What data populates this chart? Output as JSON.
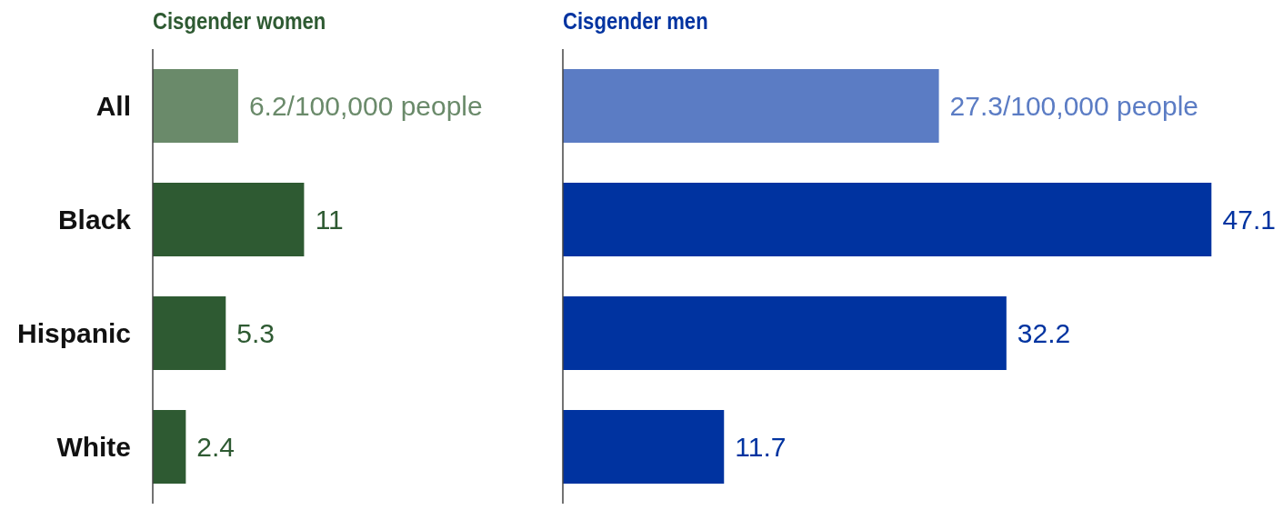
{
  "chart_data": [
    {
      "type": "bar",
      "orientation": "horizontal",
      "title": "Cisgender women",
      "categories": [
        "All",
        "Black",
        "Hispanic",
        "White"
      ],
      "values": [
        6.2,
        11,
        5.3,
        2.4
      ],
      "colors": [
        "#6a8a6a",
        "#2e5a32",
        "#2e5a32",
        "#2e5a32"
      ],
      "value_labels": [
        "6.2/100,000 people",
        "11",
        "5.3",
        "2.4"
      ]
    },
    {
      "type": "bar",
      "orientation": "horizontal",
      "title": "Cisgender men",
      "categories": [
        null,
        null,
        null,
        null
      ],
      "values": [
        27.3,
        47.1,
        32.2,
        11.7
      ],
      "colors": [
        "#5b7cc4",
        "#0033a0",
        "#0033a0",
        "#0033a0"
      ],
      "value_labels": [
        "27.3/100,000 people",
        "47.1",
        "32.2",
        "11.7"
      ],
      "tick_labels": false
    }
  ]
}
